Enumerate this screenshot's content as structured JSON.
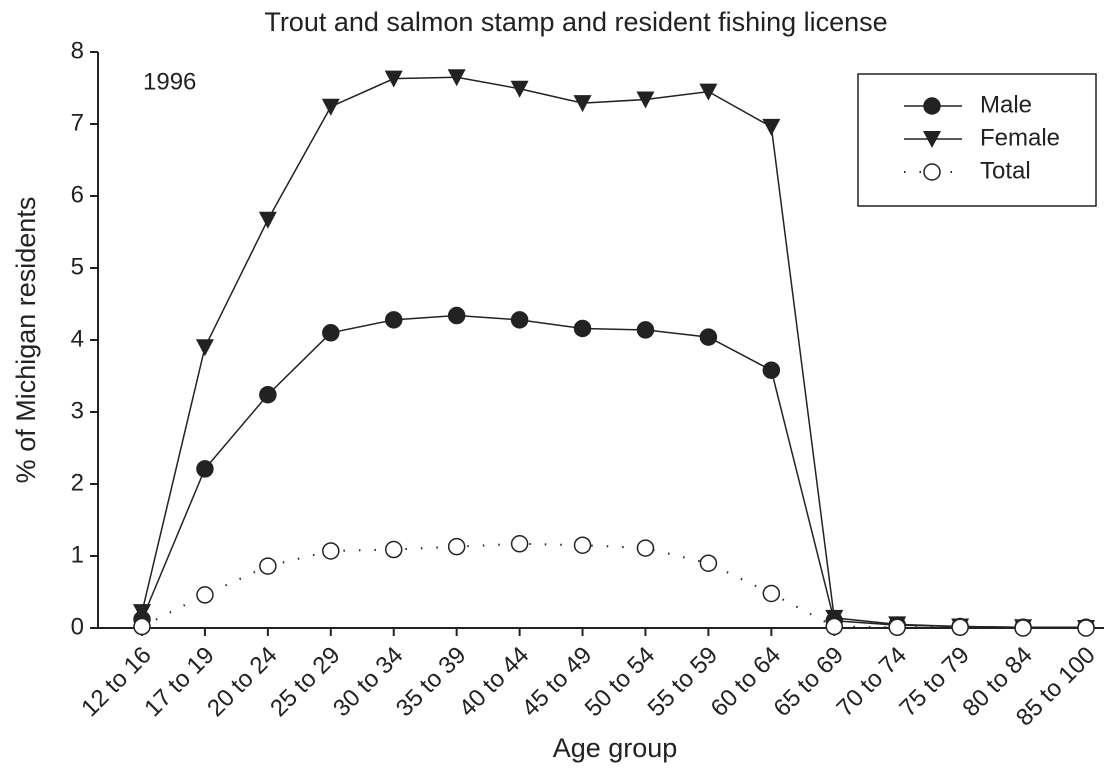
{
  "chart_data": {
    "type": "line",
    "title": "Trout and salmon stamp and resident fishing license",
    "annotation": "1996",
    "x_label": "Age group",
    "y_label": "% of Michigan residents",
    "categories": [
      "12 to 16",
      "17 to 19",
      "20 to 24",
      "25 to 29",
      "30 to 34",
      "35 to 39",
      "40 to 44",
      "45 to 49",
      "50 to 54",
      "55 to 59",
      "60 to 64",
      "65 to 69",
      "70 to 74",
      "75 to 79",
      "80 to 84",
      "85 to 100"
    ],
    "series": [
      {
        "name": "Male",
        "color": "#222222",
        "marker": "circle",
        "line": "solid",
        "values": [
          0.12,
          2.21,
          3.24,
          4.1,
          4.28,
          4.34,
          4.28,
          4.16,
          4.14,
          4.04,
          3.58,
          0.1,
          0.04,
          0.02,
          0.01,
          0.01
        ]
      },
      {
        "name": "Female",
        "color": "#222222",
        "marker": "triangle-down",
        "line": "solid",
        "values": [
          0.22,
          3.9,
          5.67,
          7.24,
          7.63,
          7.65,
          7.49,
          7.29,
          7.34,
          7.45,
          6.96,
          0.14,
          0.05,
          0.02,
          0.01,
          0.0
        ]
      },
      {
        "name": "Total",
        "color": "#222222",
        "marker": "open-circle",
        "line": "dotted",
        "values": [
          0.02,
          0.46,
          0.86,
          1.07,
          1.09,
          1.13,
          1.17,
          1.15,
          1.11,
          0.9,
          0.48,
          0.02,
          0.01,
          0.01,
          0.0,
          0.0
        ]
      }
    ],
    "ylim": [
      0,
      8
    ],
    "yticks": [
      0,
      1,
      2,
      3,
      4,
      5,
      6,
      7,
      8
    ],
    "grid": false,
    "legend": "upper right"
  }
}
